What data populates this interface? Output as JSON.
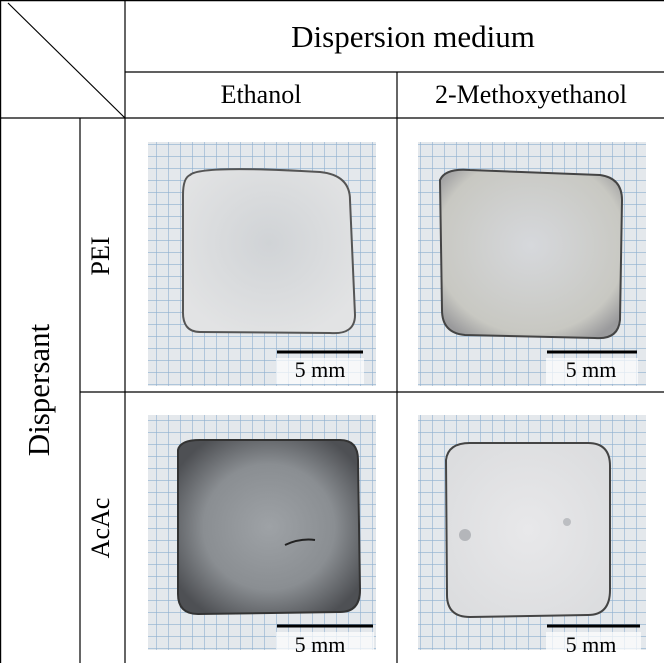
{
  "table": {
    "column_group": "Dispersion medium",
    "columns": [
      "Ethanol",
      "2-Methoxyethanol"
    ],
    "row_group": "Dispersant",
    "rows": [
      "PEI",
      "AcAc"
    ],
    "cells": [
      [
        {
          "scale_bar": "5 mm"
        },
        {
          "scale_bar": "5 mm"
        }
      ],
      [
        {
          "scale_bar": "5 mm"
        },
        {
          "scale_bar": "5 mm"
        }
      ]
    ]
  }
}
